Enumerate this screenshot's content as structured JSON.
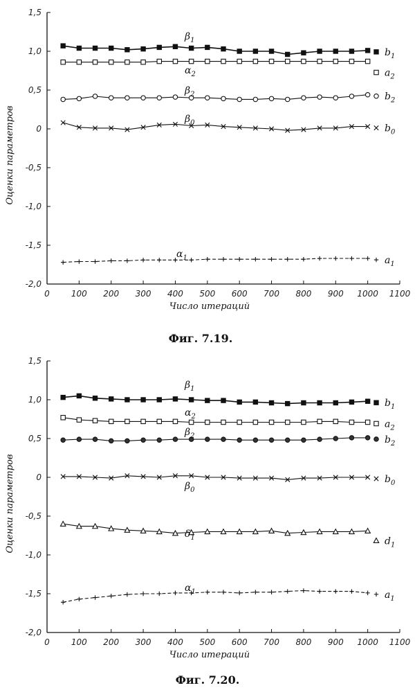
{
  "chart_data": [
    {
      "type": "line",
      "caption": "Фиг. 7.19.",
      "xlabel": "Число итераций",
      "ylabel": "Оценки параметров",
      "xlim": [
        0,
        1100
      ],
      "ylim": [
        -2.0,
        1.5
      ],
      "xticks": [
        0,
        100,
        200,
        300,
        400,
        500,
        600,
        700,
        800,
        900,
        1000,
        1100
      ],
      "xtick_labels": [
        "0",
        "100",
        "200",
        "300",
        "400",
        "500",
        "600",
        "700",
        "800",
        "900",
        "1000",
        "1100"
      ],
      "yticks": [
        1.5,
        1.0,
        0.5,
        0,
        -0.5,
        -1.0,
        -1.5,
        -2.0
      ],
      "ytick_labels": [
        "1,5",
        "1,0",
        "0,5",
        "0",
        "-0,5",
        "-1,0",
        "-1,5",
        "-2,0"
      ],
      "grid": false,
      "series": [
        {
          "name": "β1",
          "legend": "b1",
          "marker": "filled-square",
          "dash": "solid",
          "x": [
            50,
            100,
            150,
            200,
            250,
            300,
            350,
            400,
            450,
            500,
            550,
            600,
            650,
            700,
            750,
            800,
            850,
            900,
            950,
            1000
          ],
          "y": [
            1.07,
            1.04,
            1.04,
            1.04,
            1.02,
            1.03,
            1.05,
            1.06,
            1.04,
            1.05,
            1.03,
            1.0,
            1.0,
            1.0,
            0.96,
            0.98,
            1.0,
            1.0,
            1.0,
            1.01
          ]
        },
        {
          "name": "α2",
          "legend": "a2",
          "marker": "open-square",
          "dash": "solid",
          "x": [
            50,
            100,
            150,
            200,
            250,
            300,
            350,
            400,
            450,
            500,
            550,
            600,
            650,
            700,
            750,
            800,
            850,
            900,
            950,
            1000
          ],
          "y": [
            0.86,
            0.86,
            0.86,
            0.86,
            0.86,
            0.86,
            0.87,
            0.87,
            0.87,
            0.87,
            0.87,
            0.87,
            0.87,
            0.87,
            0.87,
            0.87,
            0.87,
            0.87,
            0.87,
            0.87
          ]
        },
        {
          "name": "β2",
          "legend": "b2",
          "marker": "open-circle",
          "dash": "solid",
          "x": [
            50,
            100,
            150,
            200,
            250,
            300,
            350,
            400,
            450,
            500,
            550,
            600,
            650,
            700,
            750,
            800,
            850,
            900,
            950,
            1000
          ],
          "y": [
            0.38,
            0.39,
            0.42,
            0.4,
            0.4,
            0.4,
            0.4,
            0.41,
            0.4,
            0.4,
            0.39,
            0.38,
            0.38,
            0.39,
            0.38,
            0.4,
            0.41,
            0.4,
            0.42,
            0.44
          ]
        },
        {
          "name": "β0",
          "legend": "b0",
          "marker": "x",
          "dash": "solid",
          "x": [
            50,
            100,
            150,
            200,
            250,
            300,
            350,
            400,
            450,
            500,
            550,
            600,
            650,
            700,
            750,
            800,
            850,
            900,
            950,
            1000
          ],
          "y": [
            0.08,
            0.02,
            0.01,
            0.01,
            -0.01,
            0.02,
            0.05,
            0.06,
            0.04,
            0.05,
            0.03,
            0.02,
            0.01,
            0.0,
            -0.02,
            -0.01,
            0.01,
            0.01,
            0.03,
            0.03
          ]
        },
        {
          "name": "α1",
          "legend": "a1",
          "marker": "plus",
          "dash": "dashed",
          "x": [
            50,
            100,
            150,
            200,
            250,
            300,
            350,
            400,
            450,
            500,
            550,
            600,
            650,
            700,
            750,
            800,
            850,
            900,
            950,
            1000
          ],
          "y": [
            -1.72,
            -1.71,
            -1.71,
            -1.7,
            -1.7,
            -1.69,
            -1.69,
            -1.69,
            -1.69,
            -1.68,
            -1.68,
            -1.68,
            -1.68,
            -1.68,
            -1.68,
            -1.68,
            -1.67,
            -1.67,
            -1.67,
            -1.67
          ]
        }
      ]
    },
    {
      "type": "line",
      "caption": "Фиг. 7.20.",
      "xlabel": "Число итераций",
      "ylabel": "Оценки параметров",
      "xlim": [
        0,
        1100
      ],
      "ylim": [
        -2.0,
        1.5
      ],
      "xticks": [
        0,
        100,
        200,
        300,
        400,
        500,
        600,
        700,
        800,
        900,
        1000,
        1100
      ],
      "xtick_labels": [
        "0",
        "100",
        "200",
        "300",
        "400",
        "500",
        "600",
        "700",
        "800",
        "900",
        "1000",
        "1100"
      ],
      "yticks": [
        1.5,
        1.0,
        0.5,
        0,
        -0.5,
        -1.0,
        -1.5,
        -2.0
      ],
      "ytick_labels": [
        "1,5",
        "1,0",
        "0,5",
        "0",
        "-0,5",
        "-1,0",
        "-1,5",
        "-2,0"
      ],
      "grid": false,
      "series": [
        {
          "name": "β1",
          "legend": "b1",
          "marker": "filled-square",
          "dash": "solid",
          "x": [
            50,
            100,
            150,
            200,
            250,
            300,
            350,
            400,
            450,
            500,
            550,
            600,
            650,
            700,
            750,
            800,
            850,
            900,
            950,
            1000
          ],
          "y": [
            1.03,
            1.05,
            1.02,
            1.01,
            1.0,
            1.0,
            1.0,
            1.01,
            1.0,
            0.99,
            0.99,
            0.97,
            0.97,
            0.96,
            0.95,
            0.96,
            0.96,
            0.96,
            0.97,
            0.98
          ]
        },
        {
          "name": "α2",
          "legend": "a2",
          "marker": "open-square",
          "dash": "solid",
          "x": [
            50,
            100,
            150,
            200,
            250,
            300,
            350,
            400,
            450,
            500,
            550,
            600,
            650,
            700,
            750,
            800,
            850,
            900,
            950,
            1000
          ],
          "y": [
            0.77,
            0.74,
            0.73,
            0.72,
            0.72,
            0.72,
            0.72,
            0.72,
            0.71,
            0.71,
            0.71,
            0.71,
            0.71,
            0.71,
            0.71,
            0.71,
            0.72,
            0.72,
            0.71,
            0.71
          ]
        },
        {
          "name": "β2",
          "legend": "b2",
          "marker": "circle-mixed",
          "dash": "solid",
          "x": [
            50,
            100,
            150,
            200,
            250,
            300,
            350,
            400,
            450,
            500,
            550,
            600,
            650,
            700,
            750,
            800,
            850,
            900,
            950,
            1000
          ],
          "y": [
            0.48,
            0.49,
            0.49,
            0.47,
            0.47,
            0.48,
            0.48,
            0.49,
            0.49,
            0.49,
            0.49,
            0.48,
            0.48,
            0.48,
            0.48,
            0.48,
            0.49,
            0.5,
            0.51,
            0.51
          ]
        },
        {
          "name": "β0",
          "legend": "b0",
          "marker": "x",
          "dash": "solid",
          "x": [
            50,
            100,
            150,
            200,
            250,
            300,
            350,
            400,
            450,
            500,
            550,
            600,
            650,
            700,
            750,
            800,
            850,
            900,
            950,
            1000
          ],
          "y": [
            0.01,
            0.01,
            0.0,
            -0.01,
            0.02,
            0.01,
            0.0,
            0.02,
            0.02,
            0.0,
            0.0,
            -0.01,
            -0.01,
            -0.01,
            -0.03,
            -0.01,
            -0.01,
            0.0,
            0.0,
            0.0
          ]
        },
        {
          "name": "δ1",
          "legend": "d1",
          "marker": "triangle",
          "dash": "solid",
          "x": [
            50,
            100,
            150,
            200,
            250,
            300,
            350,
            400,
            450,
            500,
            550,
            600,
            650,
            700,
            750,
            800,
            850,
            900,
            950,
            1000
          ],
          "y": [
            -0.6,
            -0.63,
            -0.63,
            -0.66,
            -0.68,
            -0.69,
            -0.7,
            -0.72,
            -0.71,
            -0.7,
            -0.7,
            -0.7,
            -0.7,
            -0.69,
            -0.72,
            -0.71,
            -0.7,
            -0.7,
            -0.7,
            -0.69
          ]
        },
        {
          "name": "α1",
          "legend": "a1",
          "marker": "plus",
          "dash": "dashed",
          "x": [
            50,
            100,
            150,
            200,
            250,
            300,
            350,
            400,
            450,
            500,
            550,
            600,
            650,
            700,
            750,
            800,
            850,
            900,
            950,
            1000
          ],
          "y": [
            -1.61,
            -1.57,
            -1.55,
            -1.53,
            -1.51,
            -1.5,
            -1.5,
            -1.49,
            -1.49,
            -1.48,
            -1.48,
            -1.49,
            -1.48,
            -1.48,
            -1.47,
            -1.46,
            -1.47,
            -1.47,
            -1.47,
            -1.49
          ]
        }
      ]
    }
  ]
}
